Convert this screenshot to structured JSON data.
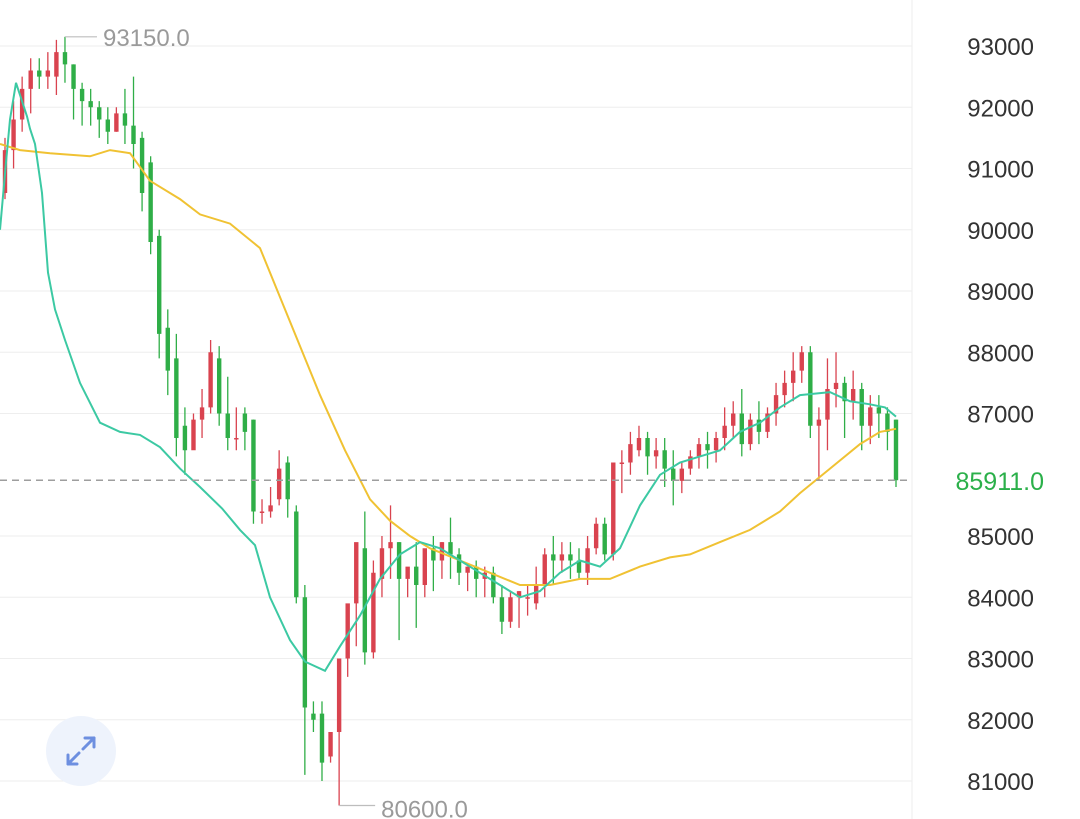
{
  "chart_data": {
    "type": "candlestick",
    "y_ticks": [
      93000,
      92000,
      91000,
      90000,
      89000,
      88000,
      87000,
      85000,
      84000,
      83000,
      82000,
      81000
    ],
    "y_tick_labels": [
      "93000",
      "92000",
      "91000",
      "90000",
      "89000",
      "88000",
      "87000",
      "85000",
      "84000",
      "83000",
      "82000",
      "81000"
    ],
    "ylim": [
      80470,
      93800
    ],
    "grid": true,
    "high_label": "93150.0",
    "low_label": "80600.0",
    "high_value": 93150,
    "low_value": 80600,
    "last_price": 85911,
    "last_price_label": "85911.0",
    "colors": {
      "up": "#d9434f",
      "down": "#2fae47",
      "fast_ma": "#3cc9a3",
      "slow_ma": "#f0c233",
      "grid": "#eeeeee",
      "price_line": "#9e9e9e"
    },
    "candles": [
      [
        90600,
        91500,
        91300,
        90500
      ],
      [
        91300,
        92100,
        91800,
        91000
      ],
      [
        91800,
        92500,
        92300,
        91600
      ],
      [
        92300,
        92800,
        92600,
        91900
      ],
      [
        92600,
        92800,
        92500,
        92300
      ],
      [
        92500,
        92900,
        92600,
        92300
      ],
      [
        92500,
        93100,
        92900,
        92200
      ],
      [
        92900,
        93150,
        92700,
        92400
      ],
      [
        92700,
        92700,
        92300,
        91800
      ],
      [
        92300,
        92400,
        92100,
        91700
      ],
      [
        92100,
        92300,
        92000,
        91700
      ],
      [
        92000,
        92100,
        91800,
        91500
      ],
      [
        91800,
        92000,
        91600,
        91400
      ],
      [
        91600,
        92000,
        91900,
        91600
      ],
      [
        91900,
        92300,
        91700,
        91400
      ],
      [
        91700,
        92500,
        91400,
        91000
      ],
      [
        91500,
        91600,
        90600,
        90300
      ],
      [
        91100,
        91200,
        89800,
        89600
      ],
      [
        89900,
        90000,
        88300,
        87900
      ],
      [
        88400,
        88700,
        87700,
        87300
      ],
      [
        87900,
        88300,
        86600,
        86300
      ],
      [
        86800,
        87100,
        86400,
        86000
      ],
      [
        86400,
        87000,
        86900,
        86600
      ],
      [
        86900,
        87400,
        87100,
        86600
      ],
      [
        87100,
        88200,
        88000,
        87000
      ],
      [
        87900,
        88100,
        87000,
        86800
      ],
      [
        87000,
        87600,
        86600,
        86400
      ],
      [
        86600,
        87100,
        86600,
        86400
      ],
      [
        87000,
        87100,
        86700,
        86400
      ],
      [
        86900,
        86900,
        85400,
        85200
      ],
      [
        85400,
        85600,
        85400,
        85200
      ],
      [
        85400,
        85800,
        85500,
        85300
      ],
      [
        85600,
        86400,
        86100,
        85500
      ],
      [
        86200,
        86300,
        85600,
        85300
      ],
      [
        85400,
        85500,
        84000,
        83900
      ],
      [
        84000,
        84200,
        82200,
        81100
      ],
      [
        82100,
        82300,
        82000,
        81800
      ],
      [
        82100,
        82300,
        81300,
        81000
      ],
      [
        81400,
        81800,
        81800,
        81300
      ],
      [
        81800,
        82100,
        83000,
        80600
      ],
      [
        83000,
        83400,
        83900,
        82700
      ],
      [
        83900,
        84600,
        84900,
        83200
      ],
      [
        84800,
        85400,
        83100,
        82900
      ],
      [
        83100,
        84600,
        84400,
        83000
      ],
      [
        84300,
        85000,
        84800,
        84000
      ],
      [
        84800,
        85500,
        84900,
        84300
      ],
      [
        84900,
        84900,
        84300,
        83300
      ],
      [
        84300,
        84400,
        84500,
        84000
      ],
      [
        84500,
        84900,
        84200,
        83500
      ],
      [
        84200,
        84600,
        84800,
        84000
      ],
      [
        84800,
        85000,
        84600,
        84100
      ],
      [
        84600,
        84900,
        84900,
        84300
      ],
      [
        84900,
        85300,
        84700,
        84300
      ],
      [
        84700,
        84800,
        84400,
        84200
      ],
      [
        84400,
        84500,
        84500,
        84100
      ],
      [
        84500,
        84600,
        84300,
        84000
      ],
      [
        84300,
        84500,
        84400,
        84000
      ],
      [
        84400,
        84500,
        84000,
        83900
      ],
      [
        84000,
        84200,
        83600,
        83400
      ],
      [
        83600,
        84100,
        84000,
        83500
      ],
      [
        84000,
        84100,
        84100,
        83500
      ],
      [
        84000,
        84200,
        84000,
        83700
      ],
      [
        83900,
        84500,
        84200,
        83800
      ],
      [
        84200,
        84800,
        84700,
        84000
      ],
      [
        84700,
        85000,
        84600,
        84200
      ],
      [
        84600,
        84900,
        84700,
        84400
      ],
      [
        84700,
        84900,
        84600,
        84300
      ],
      [
        84600,
        84800,
        84400,
        84300
      ],
      [
        84400,
        85000,
        84800,
        84200
      ],
      [
        84800,
        85300,
        85200,
        84700
      ],
      [
        85200,
        85300,
        84700,
        84600
      ],
      [
        84700,
        85100,
        86200,
        84600
      ],
      [
        86200,
        86400,
        86200,
        85700
      ],
      [
        86200,
        86700,
        86500,
        86000
      ],
      [
        86400,
        86800,
        86600,
        86300
      ],
      [
        86600,
        86700,
        86300,
        86000
      ],
      [
        86300,
        86600,
        86400,
        86100
      ],
      [
        86400,
        86600,
        86100,
        85800
      ],
      [
        86100,
        86400,
        85900,
        85500
      ],
      [
        85900,
        86200,
        86100,
        85700
      ],
      [
        86100,
        86400,
        86300,
        86000
      ],
      [
        86300,
        86600,
        86500,
        86100
      ],
      [
        86500,
        86700,
        86400,
        86100
      ],
      [
        86400,
        86700,
        86600,
        86200
      ],
      [
        86600,
        87100,
        86800,
        86400
      ],
      [
        86800,
        87200,
        87000,
        86600
      ],
      [
        87000,
        87400,
        86500,
        86300
      ],
      [
        86500,
        87000,
        86900,
        86400
      ],
      [
        86900,
        87200,
        86700,
        86500
      ],
      [
        86700,
        87100,
        87000,
        86600
      ],
      [
        87000,
        87500,
        87300,
        86800
      ],
      [
        87300,
        87700,
        87500,
        87100
      ],
      [
        87500,
        88000,
        87700,
        87200
      ],
      [
        87700,
        88100,
        88000,
        87500
      ],
      [
        88000,
        88100,
        86800,
        86600
      ],
      [
        86800,
        87100,
        86900,
        85900
      ],
      [
        86900,
        87900,
        87400,
        86400
      ],
      [
        87400,
        88000,
        87500,
        87100
      ],
      [
        87500,
        87600,
        87200,
        86600
      ],
      [
        87200,
        87700,
        87400,
        86900
      ],
      [
        87400,
        87500,
        86800,
        86400
      ],
      [
        86800,
        87300,
        87100,
        86500
      ],
      [
        87100,
        87300,
        87000,
        86600
      ],
      [
        87000,
        87100,
        86700,
        86400
      ],
      [
        86900,
        86900,
        85911,
        85800
      ]
    ],
    "fast_ma": [
      [
        0,
        90000
      ],
      [
        6,
        91100
      ],
      [
        10,
        91800
      ],
      [
        16,
        92400
      ],
      [
        22,
        92100
      ],
      [
        27,
        91850
      ],
      [
        30,
        91650
      ],
      [
        35,
        91400
      ],
      [
        42,
        90600
      ],
      [
        48,
        89300
      ],
      [
        55,
        88700
      ],
      [
        65,
        88200
      ],
      [
        80,
        87500
      ],
      [
        100,
        86850
      ],
      [
        120,
        86700
      ],
      [
        140,
        86650
      ],
      [
        160,
        86450
      ],
      [
        180,
        86100
      ],
      [
        200,
        85800
      ],
      [
        222,
        85450
      ],
      [
        240,
        85100
      ],
      [
        255,
        84850
      ],
      [
        270,
        84000
      ],
      [
        290,
        83300
      ],
      [
        305,
        82950
      ],
      [
        325,
        82800
      ],
      [
        340,
        83200
      ],
      [
        360,
        83700
      ],
      [
        380,
        84300
      ],
      [
        400,
        84700
      ],
      [
        420,
        84900
      ],
      [
        440,
        84800
      ],
      [
        460,
        84600
      ],
      [
        480,
        84400
      ],
      [
        500,
        84200
      ],
      [
        520,
        84000
      ],
      [
        540,
        84100
      ],
      [
        560,
        84400
      ],
      [
        580,
        84600
      ],
      [
        600,
        84500
      ],
      [
        620,
        84800
      ],
      [
        640,
        85500
      ],
      [
        660,
        86000
      ],
      [
        680,
        86200
      ],
      [
        700,
        86300
      ],
      [
        720,
        86400
      ],
      [
        740,
        86700
      ],
      [
        760,
        86850
      ],
      [
        780,
        87100
      ],
      [
        800,
        87300
      ],
      [
        830,
        87350
      ],
      [
        850,
        87200
      ],
      [
        870,
        87150
      ],
      [
        885,
        87100
      ],
      [
        896,
        86950
      ]
    ],
    "slow_ma": [
      [
        0,
        91400
      ],
      [
        20,
        91300
      ],
      [
        50,
        91250
      ],
      [
        90,
        91200
      ],
      [
        110,
        91300
      ],
      [
        130,
        91250
      ],
      [
        150,
        90800
      ],
      [
        180,
        90500
      ],
      [
        200,
        90250
      ],
      [
        230,
        90100
      ],
      [
        260,
        89700
      ],
      [
        290,
        88500
      ],
      [
        320,
        87300
      ],
      [
        345,
        86400
      ],
      [
        370,
        85600
      ],
      [
        390,
        85250
      ],
      [
        410,
        85000
      ],
      [
        430,
        84800
      ],
      [
        460,
        84600
      ],
      [
        490,
        84400
      ],
      [
        520,
        84200
      ],
      [
        550,
        84200
      ],
      [
        580,
        84300
      ],
      [
        610,
        84300
      ],
      [
        640,
        84500
      ],
      [
        670,
        84650
      ],
      [
        690,
        84700
      ],
      [
        720,
        84900
      ],
      [
        750,
        85100
      ],
      [
        780,
        85400
      ],
      [
        800,
        85700
      ],
      [
        830,
        86100
      ],
      [
        860,
        86500
      ],
      [
        880,
        86700
      ],
      [
        896,
        86750
      ]
    ]
  },
  "controls": {
    "expand_icon": "expand-arrows-icon"
  }
}
